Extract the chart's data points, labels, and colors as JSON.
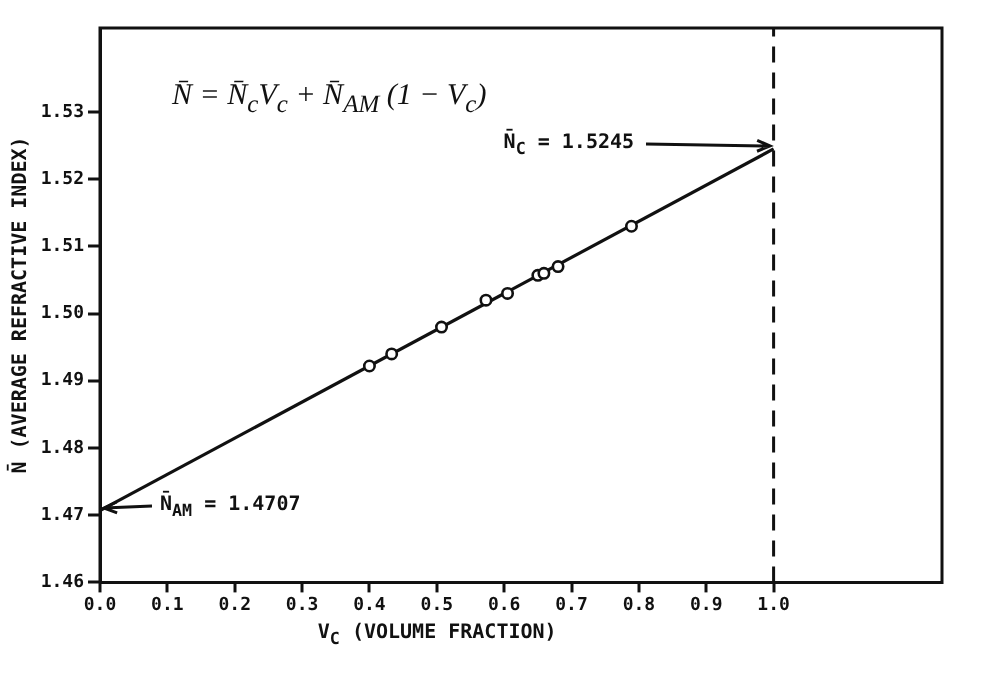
{
  "chart_data": {
    "type": "scatter",
    "xlabel": "V$_{C}$ (VOLUME FRACTION)",
    "ylabel": "N̄ (AVERAGE REFRACTIVE INDEX)",
    "xlim": [
      0,
      1.25
    ],
    "xticks": [
      {
        "value": 0,
        "label": "0.0"
      },
      {
        "value": 0.1,
        "label": "0.1"
      },
      {
        "value": 0.2,
        "label": "0.2"
      },
      {
        "value": 0.3,
        "label": "0.3"
      },
      {
        "value": 0.4,
        "label": "0.4"
      },
      {
        "value": 0.5,
        "label": "0.5"
      },
      {
        "value": 0.6,
        "label": "0.6"
      },
      {
        "value": 0.7,
        "label": "0.7"
      },
      {
        "value": 0.8,
        "label": "0.8"
      },
      {
        "value": 0.9,
        "label": "0.9"
      },
      {
        "value": 1.0,
        "label": "1.0"
      }
    ],
    "ylim": [
      1.46,
      1.5425
    ],
    "yticks": [
      1.46,
      1.47,
      1.48,
      1.49,
      {
        "value": 1.5,
        "label": "1.50"
      },
      1.51,
      1.52,
      1.53
    ],
    "grid": false,
    "legend": false,
    "series": [
      {
        "color": "#111111",
        "marker": "circle",
        "x": [
          0.4,
          0.433,
          0.507,
          0.573,
          0.605,
          0.65,
          0.659,
          0.68,
          0.789
        ],
        "values": [
          1.4922,
          1.494,
          1.498,
          1.502,
          1.503,
          1.5057,
          1.506,
          1.507,
          1.513
        ]
      },
      {
        "type": "line",
        "color": "#111111",
        "marker": "none",
        "line_style": "solid",
        "x": [
          0,
          1.0
        ],
        "values": [
          1.4707,
          1.5245
        ]
      }
    ],
    "ref_lines": [
      {
        "axis": "x",
        "value": 1.0,
        "color": "#111111",
        "line_style": "dashed"
      }
    ],
    "annotations": [
      {
        "text": "N̄ = N̄$_{c}$V$_{c}$ + N̄$_{AM}$ (1 − V$_{c}$)"
      },
      {
        "text": "N̄$_{C}$ = 1.5245",
        "x": 1.0,
        "y": 1.5245
      },
      "N̄$_{AM}$ = 1.4707"
    ]
  }
}
